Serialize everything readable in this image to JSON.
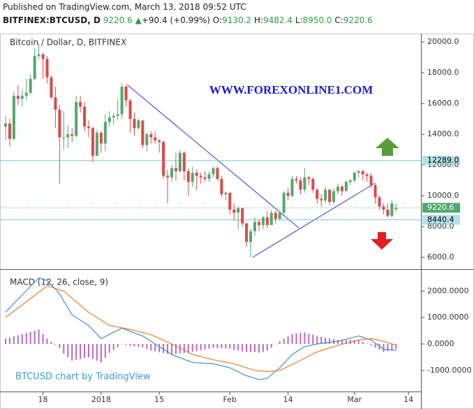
{
  "header": {
    "published": "Published on TradingView.com, March 13, 2018 09:52 UTC",
    "symbol": "BITFINEX:BTCUSD, D",
    "last": "9220.6",
    "arrow": "▲",
    "change": "+90.4 (+0.99%)",
    "open_label": "O:",
    "open": "9130.2",
    "high_label": "H:",
    "high": "9482.4",
    "low_label": "L:",
    "low": "8950.0",
    "close_label": "C:",
    "close": "9220.6"
  },
  "chart_data": [
    {
      "type": "candlestick",
      "title": "Bitcoin / Dollar, D, BITFINEX",
      "annotation": "WWW.FOREXONLINE1.COM",
      "up_color": "#53a86e",
      "down_color": "#dc4a4a",
      "categories": [
        null,
        null,
        null,
        null,
        null,
        null,
        null,
        null,
        null,
        "18",
        null,
        null,
        null,
        null,
        null,
        null,
        null,
        null,
        null,
        null,
        null,
        null,
        null,
        "2018",
        null,
        null,
        null,
        null,
        null,
        null,
        null,
        null,
        null,
        null,
        null,
        null,
        null,
        "15",
        null,
        null,
        null,
        null,
        null,
        null,
        null,
        null,
        null,
        null,
        null,
        null,
        null,
        null,
        null,
        null,
        "Feb",
        null,
        null,
        null,
        null,
        null,
        null,
        null,
        null,
        null,
        null,
        null,
        null,
        null,
        "14",
        null,
        null,
        null,
        null,
        null,
        null,
        null,
        null,
        null,
        null,
        null,
        null,
        null,
        null,
        null,
        "Mar",
        null,
        null,
        null,
        null,
        null,
        null,
        null,
        null,
        null,
        null,
        null,
        null,
        "14"
      ],
      "values": [
        [
          14500,
          15200,
          13600,
          14700
        ],
        [
          14700,
          15000,
          13200,
          13700
        ],
        [
          13700,
          16800,
          13600,
          16500
        ],
        [
          16500,
          17200,
          15900,
          16300
        ],
        [
          16300,
          16900,
          15800,
          16500
        ],
        [
          16500,
          17600,
          16200,
          16700
        ],
        [
          16700,
          17900,
          16600,
          17600
        ],
        [
          17600,
          19600,
          17500,
          19100
        ],
        [
          19100,
          19900,
          18900,
          19200
        ],
        [
          19200,
          19300,
          17600,
          18900
        ],
        [
          18900,
          19100,
          17300,
          17700
        ],
        [
          17700,
          17800,
          16300,
          16400
        ],
        [
          16400,
          17100,
          14400,
          15600
        ],
        [
          15600,
          15900,
          10800,
          13800
        ],
        [
          13800,
          15500,
          13000,
          13800
        ],
        [
          13800,
          14600,
          13100,
          14000
        ],
        [
          14000,
          14400,
          13500,
          13900
        ],
        [
          13900,
          16500,
          13800,
          16100
        ],
        [
          16100,
          16500,
          15400,
          15800
        ],
        [
          15800,
          16100,
          14200,
          14500
        ],
        [
          14500,
          14900,
          13800,
          14400
        ],
        [
          14400,
          14500,
          12200,
          12600
        ],
        [
          12600,
          14300,
          12600,
          14100
        ],
        [
          14100,
          14200,
          12800,
          13400
        ],
        [
          13400,
          15300,
          12900,
          14800
        ],
        [
          14800,
          15500,
          14500,
          15100
        ],
        [
          15100,
          15400,
          14600,
          15200
        ],
        [
          15200,
          16300,
          14900,
          15300
        ],
        [
          15300,
          17300,
          15000,
          17100
        ],
        [
          17100,
          17200,
          15800,
          16200
        ],
        [
          16200,
          16300,
          14100,
          15000
        ],
        [
          15000,
          15400,
          13900,
          14400
        ],
        [
          14400,
          15000,
          14300,
          14900
        ],
        [
          14900,
          14900,
          13100,
          13300
        ],
        [
          13300,
          14100,
          12900,
          14000
        ],
        [
          14000,
          14200,
          13400,
          13800
        ],
        [
          13800,
          14200,
          13400,
          13600
        ],
        [
          13600,
          13700,
          12800,
          13500
        ],
        [
          13500,
          13600,
          11100,
          11300
        ],
        [
          11300,
          11700,
          9500,
          11200
        ],
        [
          11200,
          12000,
          10900,
          11800
        ],
        [
          11800,
          12800,
          11000,
          11600
        ],
        [
          11600,
          13000,
          11500,
          12800
        ],
        [
          12800,
          12900,
          11000,
          11600
        ],
        [
          11600,
          11800,
          10000,
          10900
        ],
        [
          10900,
          11900,
          10600,
          11500
        ],
        [
          11500,
          11700,
          10400,
          11300
        ],
        [
          11300,
          11500,
          10800,
          11200
        ],
        [
          11200,
          11600,
          10900,
          11100
        ],
        [
          11100,
          11600,
          10900,
          11400
        ],
        [
          11400,
          11900,
          11200,
          11800
        ],
        [
          11800,
          11900,
          11000,
          11100
        ],
        [
          11100,
          11300,
          9900,
          10100
        ],
        [
          10100,
          10300,
          9700,
          10200
        ],
        [
          10200,
          10200,
          8800,
          9100
        ],
        [
          9100,
          9500,
          8400,
          8900
        ],
        [
          8900,
          9300,
          7800,
          9200
        ],
        [
          9200,
          9200,
          8000,
          8200
        ],
        [
          8200,
          8300,
          6700,
          7000
        ],
        [
          7000,
          7900,
          6000,
          7700
        ],
        [
          7700,
          8600,
          7400,
          8300
        ],
        [
          8300,
          8500,
          7700,
          8100
        ],
        [
          8100,
          8700,
          7800,
          8600
        ],
        [
          8600,
          9000,
          7900,
          8100
        ],
        [
          8100,
          9100,
          8100,
          8900
        ],
        [
          8900,
          9000,
          8200,
          8500
        ],
        [
          8500,
          9000,
          8400,
          8900
        ],
        [
          8900,
          10300,
          8700,
          10200
        ],
        [
          10200,
          10500,
          9700,
          10000
        ],
        [
          10000,
          11300,
          9900,
          11100
        ],
        [
          11100,
          11300,
          10800,
          11000
        ],
        [
          11000,
          11200,
          10100,
          10400
        ],
        [
          10400,
          11800,
          10200,
          11200
        ],
        [
          11200,
          11300,
          10700,
          11100
        ],
        [
          11100,
          11200,
          10200,
          10400
        ],
        [
          10400,
          10500,
          9500,
          9800
        ],
        [
          9800,
          10100,
          9300,
          9700
        ],
        [
          9700,
          10600,
          9500,
          10400
        ],
        [
          10400,
          10400,
          9400,
          9600
        ],
        [
          9600,
          10500,
          9500,
          10300
        ],
        [
          10300,
          10800,
          10100,
          10600
        ],
        [
          10600,
          10700,
          10000,
          10300
        ],
        [
          10300,
          11000,
          10300,
          10900
        ],
        [
          10900,
          11100,
          10700,
          11000
        ],
        [
          11000,
          11600,
          10900,
          11500
        ],
        [
          11500,
          11700,
          11200,
          11600
        ],
        [
          11600,
          11700,
          11000,
          11400
        ],
        [
          11400,
          11500,
          10900,
          11300
        ],
        [
          11300,
          11500,
          10500,
          10700
        ],
        [
          10700,
          10800,
          9500,
          9900
        ],
        [
          9900,
          10000,
          9100,
          9300
        ],
        [
          9300,
          9500,
          8800,
          9100
        ],
        [
          9100,
          9500,
          8600,
          8700
        ],
        [
          8700,
          9700,
          8600,
          9500
        ],
        [
          9130.2,
          9482.4,
          8950.0,
          9220.6
        ],
        null
      ],
      "ylim": [
        5230,
        20550
      ],
      "yticks": [
        {
          "value": 6000,
          "label": "6000.0"
        },
        {
          "value": 8000,
          "label": "8000.0"
        },
        {
          "value": 10000,
          "label": "10000.0"
        },
        {
          "value": 12000,
          "label": "12000.0"
        },
        {
          "value": 14000,
          "label": "14000.0"
        },
        {
          "value": 16000,
          "label": "16000.0"
        },
        {
          "value": 18000,
          "label": "18000.0"
        },
        {
          "value": 20000,
          "label": "20000.0"
        }
      ],
      "levels": [
        {
          "value": 12289.0,
          "label": "12289.0",
          "color": "#7cc7d6"
        },
        {
          "value": 8440.4,
          "label": "8440.4",
          "color": "#7cc7d6"
        }
      ],
      "last_price": {
        "value": 9220.6,
        "label": "9220.6",
        "color": "#53a86e"
      }
    },
    {
      "type": "macd",
      "title": "MACD (12, 26, close, 9)",
      "annotation": "BTCUSD chart by TradingView",
      "ylim": [
        -1800,
        2830
      ],
      "yticks": [
        {
          "value": -1000,
          "label": "-1000.0000"
        },
        {
          "value": 0,
          "label": "0.0000"
        },
        {
          "value": 1000,
          "label": "1000.0000"
        },
        {
          "value": 2000,
          "label": "2000.0000"
        }
      ],
      "series": [
        {
          "name": "Histogram",
          "kind": "histogram",
          "color": "#a23aa6",
          "values": [
            200,
            240,
            290,
            330,
            370,
            410,
            460,
            500,
            540,
            370,
            200,
            80,
            -30,
            -150,
            -370,
            -500,
            -630,
            -600,
            -570,
            -530,
            -500,
            -570,
            -630,
            -700,
            -520,
            -340,
            -230,
            -120,
            -10,
            -40,
            -70,
            -90,
            -110,
            -130,
            -190,
            -250,
            -280,
            -310,
            -340,
            -370,
            -400,
            -380,
            -360,
            -340,
            -320,
            -300,
            -270,
            -240,
            -210,
            -180,
            -150,
            -160,
            -170,
            -170,
            -180,
            -230,
            -250,
            -280,
            -300,
            -300,
            -300,
            -330,
            -300,
            -250,
            -140,
            -10,
            100,
            200,
            280,
            380,
            400,
            420,
            440,
            390,
            350,
            300,
            270,
            240,
            210,
            180,
            150,
            150,
            150,
            150,
            150,
            150,
            80,
            20,
            -50,
            -140,
            -210,
            -300,
            -270,
            -230,
            -200,
            null
          ]
        },
        {
          "name": "MACD",
          "kind": "line",
          "color": "#3d8fd6",
          "values": [
            1200,
            1360,
            1530,
            1690,
            1850,
            2010,
            2180,
            2340,
            2500,
            2450,
            2400,
            2230,
            2070,
            1900,
            1630,
            1370,
            1100,
            1000,
            900,
            800,
            700,
            530,
            370,
            200,
            280,
            360,
            440,
            520,
            600,
            540,
            480,
            420,
            360,
            300,
            200,
            100,
            0,
            -100,
            -200,
            -300,
            -400,
            -460,
            -520,
            -580,
            -640,
            -700,
            -710,
            -720,
            -730,
            -740,
            -750,
            -790,
            -830,
            -860,
            -900,
            -980,
            -1050,
            -1130,
            -1200,
            -1250,
            -1300,
            -1350,
            -1330,
            -1300,
            -1170,
            -1030,
            -900,
            -730,
            -570,
            -400,
            -300,
            -200,
            -100,
            -70,
            -30,
            0,
            20,
            40,
            60,
            80,
            100,
            140,
            180,
            220,
            260,
            300,
            250,
            200,
            150,
            30,
            -80,
            -200,
            -220,
            -230,
            -250,
            null
          ]
        },
        {
          "name": "Signal",
          "kind": "line",
          "color": "#f07d2a",
          "values": [
            1000,
            1120,
            1240,
            1360,
            1480,
            1600,
            1720,
            1840,
            1960,
            2080,
            2200,
            2150,
            2100,
            2050,
            2000,
            1870,
            1730,
            1600,
            1470,
            1330,
            1200,
            1100,
            1000,
            900,
            800,
            700,
            670,
            640,
            610,
            580,
            550,
            510,
            470,
            430,
            390,
            350,
            280,
            210,
            140,
            70,
            0,
            -80,
            -160,
            -240,
            -320,
            -400,
            -440,
            -480,
            -520,
            -560,
            -600,
            -630,
            -660,
            -690,
            -720,
            -750,
            -800,
            -850,
            -900,
            -950,
            -1000,
            -1020,
            -1030,
            -1050,
            -1030,
            -1020,
            -1000,
            -930,
            -850,
            -780,
            -700,
            -620,
            -540,
            -460,
            -380,
            -300,
            -250,
            -200,
            -150,
            -100,
            -50,
            -10,
            30,
            70,
            110,
            150,
            170,
            180,
            200,
            170,
            130,
            100,
            50,
            0,
            -50,
            null
          ]
        }
      ]
    }
  ]
}
